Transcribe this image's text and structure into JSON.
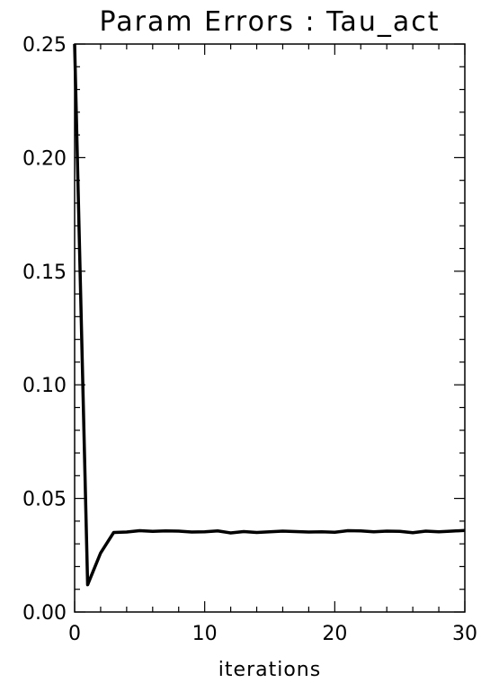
{
  "chart_data": {
    "type": "line",
    "title": "Param Errors : Tau_act",
    "xlabel": "iterations",
    "ylabel": "",
    "xlim": [
      0,
      30
    ],
    "ylim": [
      0,
      0.25
    ],
    "grid": false,
    "x_tick_labels": [
      "0",
      "10",
      "20",
      "30"
    ],
    "y_tick_labels": [
      "0.00",
      "0.05",
      "0.10",
      "0.15",
      "0.20",
      "0.25"
    ],
    "series": [
      {
        "x": [
          0,
          1,
          2,
          3,
          4,
          5,
          6,
          7,
          8,
          9,
          10,
          11,
          12,
          13,
          14,
          15,
          16,
          17,
          18,
          19,
          20,
          21,
          22,
          23,
          24,
          25,
          26,
          27,
          28,
          29,
          30
        ],
        "y": [
          0.25,
          0.012,
          0.026,
          0.035,
          0.0352,
          0.0358,
          0.0355,
          0.0357,
          0.0356,
          0.0352,
          0.0353,
          0.0357,
          0.0348,
          0.0354,
          0.035,
          0.0353,
          0.0356,
          0.0354,
          0.0352,
          0.0353,
          0.0351,
          0.0358,
          0.0357,
          0.0353,
          0.0356,
          0.0355,
          0.0349,
          0.0356,
          0.0353,
          0.0356,
          0.0359
        ]
      }
    ]
  }
}
